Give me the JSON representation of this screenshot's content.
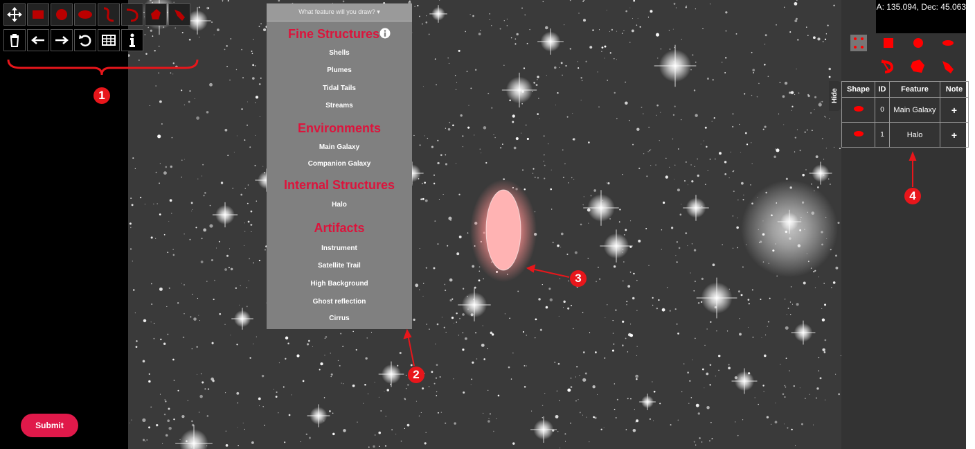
{
  "coordinates": "RA: 135.094, Dec: 45.063",
  "dropdown": {
    "placeholder": "What feature will you draw?",
    "sections": [
      {
        "title": "Fine Structures",
        "items": [
          "Shells",
          "Plumes",
          "Tidal Tails",
          "Streams"
        ]
      },
      {
        "title": "Environments",
        "items": [
          "Main Galaxy",
          "Companion Galaxy"
        ]
      },
      {
        "title": "Internal Structures",
        "items": [
          "Halo"
        ]
      },
      {
        "title": "Artifacts",
        "items": [
          "Instrument",
          "Satellite Trail",
          "High Background",
          "Ghost reflection",
          "Cirrus"
        ]
      }
    ]
  },
  "hide_tab": "Hide",
  "table": {
    "headers": [
      "Shape",
      "ID",
      "Feature",
      "Note"
    ],
    "rows": [
      [
        "0",
        "Main Galaxy",
        "+"
      ],
      [
        "1",
        "Halo",
        "+"
      ]
    ]
  },
  "submit": "Submit",
  "callouts": [
    "1",
    "2",
    "3",
    "4"
  ]
}
